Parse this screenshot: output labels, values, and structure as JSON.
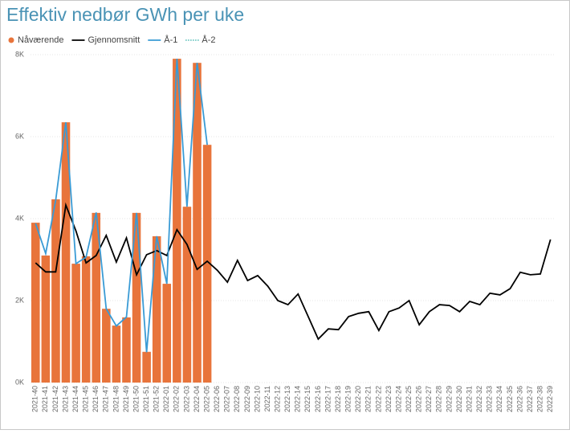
{
  "chart_data": {
    "type": "bar-line",
    "title": "Effektiv nedbør GWh per uke",
    "categories": [
      "2021-40",
      "2021-41",
      "2021-42",
      "2021-43",
      "2021-44",
      "2021-45",
      "2021-46",
      "2021-47",
      "2021-48",
      "2021-49",
      "2021-50",
      "2021-51",
      "2021-52",
      "2022-01",
      "2022-02",
      "2022-03",
      "2022-04",
      "2022-05",
      "2022-06",
      "2022-07",
      "2022-08",
      "2022-09",
      "2022-10",
      "2022-11",
      "2022-12",
      "2022-13",
      "2022-14",
      "2022-15",
      "2022-16",
      "2022-17",
      "2022-18",
      "2022-19",
      "2022-20",
      "2022-21",
      "2022-22",
      "2022-23",
      "2022-24",
      "2022-25",
      "2022-26",
      "2022-27",
      "2022-28",
      "2022-29",
      "2022-30",
      "2022-31",
      "2022-32",
      "2022-33",
      "2022-34",
      "2022-35",
      "2022-36",
      "2022-37",
      "2022-38",
      "2022-39"
    ],
    "series": [
      {
        "name": "Nåværende",
        "kind": "bar",
        "color": "#e8743b",
        "values": [
          3900,
          3100,
          4470,
          6350,
          2900,
          3080,
          4140,
          1800,
          1390,
          1590,
          4140,
          750,
          3570,
          2410,
          7900,
          4290,
          7800,
          5800,
          null,
          null,
          null,
          null,
          null,
          null,
          null,
          null,
          null,
          null,
          null,
          null,
          null,
          null,
          null,
          null,
          null,
          null,
          null,
          null,
          null,
          null,
          null,
          null,
          null,
          null,
          null,
          null,
          null,
          null,
          null,
          null,
          null,
          null
        ]
      },
      {
        "name": "Gjennomsnitt",
        "kind": "line",
        "color": "#000000",
        "values": [
          2920,
          2700,
          2700,
          4330,
          3700,
          2920,
          3100,
          3590,
          2940,
          3530,
          2630,
          3120,
          3220,
          3100,
          3730,
          3370,
          2760,
          2960,
          2740,
          2450,
          2980,
          2490,
          2610,
          2350,
          2000,
          1900,
          2160,
          1610,
          1060,
          1310,
          1290,
          1610,
          1690,
          1730,
          1270,
          1730,
          1820,
          2000,
          1410,
          1730,
          1900,
          1880,
          1730,
          1980,
          1900,
          2180,
          2140,
          2290,
          2690,
          2630,
          2650,
          3490
        ]
      },
      {
        "name": "Å-1",
        "kind": "line",
        "color": "#3a9bd5",
        "values": [
          3880,
          3150,
          4450,
          6350,
          2900,
          3060,
          4150,
          1800,
          1380,
          1600,
          4140,
          740,
          3570,
          2410,
          7900,
          4290,
          7800,
          5800,
          null,
          null,
          null,
          null,
          null,
          null,
          null,
          null,
          null,
          null,
          null,
          null,
          null,
          null,
          null,
          null,
          null,
          null,
          null,
          null,
          null,
          null,
          null,
          null,
          null,
          null,
          null,
          null,
          null,
          null,
          null,
          null,
          null,
          null
        ]
      },
      {
        "name": "Å-2",
        "kind": "dotted",
        "color": "#1aa89f",
        "values": [
          null,
          null,
          null,
          null,
          null,
          null,
          null,
          null,
          null,
          null,
          null,
          null,
          null,
          null,
          null,
          null,
          null,
          null,
          null,
          null,
          null,
          null,
          null,
          null,
          null,
          null,
          null,
          null,
          null,
          null,
          null,
          null,
          null,
          null,
          null,
          null,
          null,
          null,
          null,
          null,
          null,
          null,
          null,
          null,
          null,
          null,
          null,
          null,
          null,
          null,
          null,
          null
        ]
      }
    ],
    "ylim": [
      0,
      8000
    ],
    "yticks": [
      {
        "value": 0,
        "label": "0K"
      },
      {
        "value": 2000,
        "label": "2K"
      },
      {
        "value": 4000,
        "label": "4K"
      },
      {
        "value": 6000,
        "label": "6K"
      },
      {
        "value": 8000,
        "label": "8K"
      }
    ],
    "grid": true
  }
}
